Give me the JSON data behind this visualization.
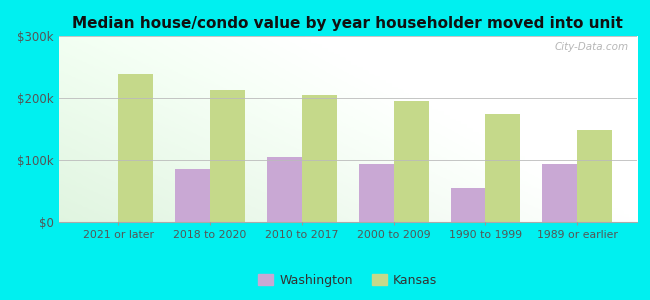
{
  "title": "Median house/condo value by year householder moved into unit",
  "categories": [
    "2021 or later",
    "2018 to 2020",
    "2010 to 2017",
    "2000 to 2009",
    "1990 to 1999",
    "1989 or earlier"
  ],
  "washington_values": [
    0,
    85000,
    105000,
    93000,
    55000,
    93000
  ],
  "kansas_values": [
    238000,
    213000,
    205000,
    195000,
    175000,
    148000
  ],
  "washington_color": "#c9a8d4",
  "kansas_color": "#c5d98a",
  "background_color": "#00f0f0",
  "plot_bg_color": "#e8f8e8",
  "ylim": [
    0,
    300000
  ],
  "ytick_labels": [
    "$0",
    "$100k",
    "$200k",
    "$300k"
  ],
  "watermark": "City-Data.com",
  "legend_washington": "Washington",
  "legend_kansas": "Kansas",
  "bar_width": 0.38
}
